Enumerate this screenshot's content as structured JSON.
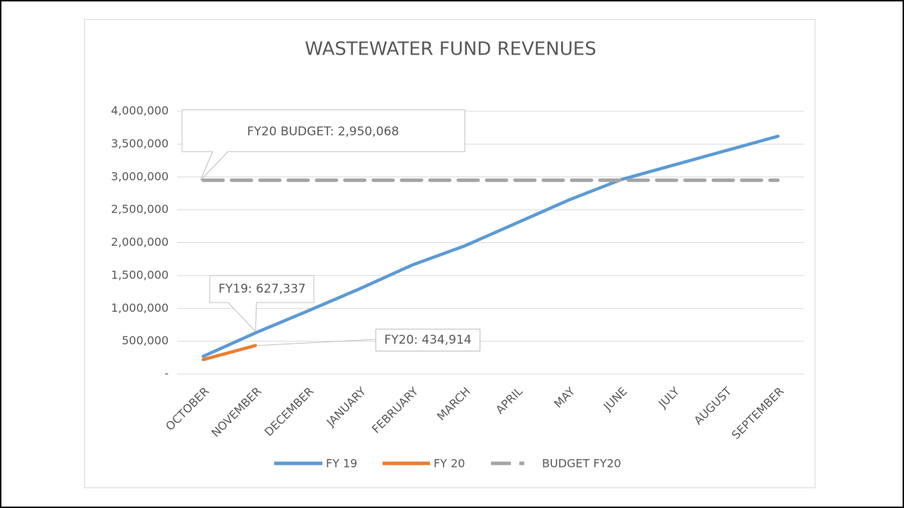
{
  "chart_data": {
    "type": "line",
    "title": "WASTEWATER FUND REVENUES",
    "categories": [
      "OCTOBER",
      "NOVEMBER",
      "DECEMBER",
      "JANUARY",
      "FEBRUARY",
      "MARCH",
      "APRIL",
      "MAY",
      "JUNE",
      "JULY",
      "AUGUST",
      "SEPTEMBER"
    ],
    "series": [
      {
        "name": "FY 19",
        "color": "#5b9bd5",
        "values": [
          270000,
          627337,
          960000,
          1300000,
          1660000,
          1950000,
          2300000,
          2650000,
          2960000,
          3180000,
          3400000,
          3620000
        ]
      },
      {
        "name": "FY 20",
        "color": "#ed7d31",
        "values": [
          220000,
          434914,
          null,
          null,
          null,
          null,
          null,
          null,
          null,
          null,
          null,
          null
        ]
      },
      {
        "name": "BUDGET FY20",
        "color": "#a5a5a5",
        "dashed": true,
        "values": [
          2950068,
          2950068,
          2950068,
          2950068,
          2950068,
          2950068,
          2950068,
          2950068,
          2950068,
          2950068,
          2950068,
          2950068
        ]
      }
    ],
    "ylim": [
      0,
      4000000
    ],
    "yticks": [
      {
        "value": 0,
        "label": "-"
      },
      {
        "value": 500000,
        "label": "500,000"
      },
      {
        "value": 1000000,
        "label": "1,000,000"
      },
      {
        "value": 1500000,
        "label": "1,500,000"
      },
      {
        "value": 2000000,
        "label": "2,000,000"
      },
      {
        "value": 2500000,
        "label": "2,500,000"
      },
      {
        "value": 3000000,
        "label": "3,000,000"
      },
      {
        "value": 3500000,
        "label": "3,500,000"
      },
      {
        "value": 4000000,
        "label": "4,000,000"
      }
    ],
    "grid": true,
    "legend": "bottom",
    "annotations": [
      "FY20 BUDGET: 2,950,068",
      "FY19: 627,337",
      "FY20: 434,914"
    ]
  }
}
